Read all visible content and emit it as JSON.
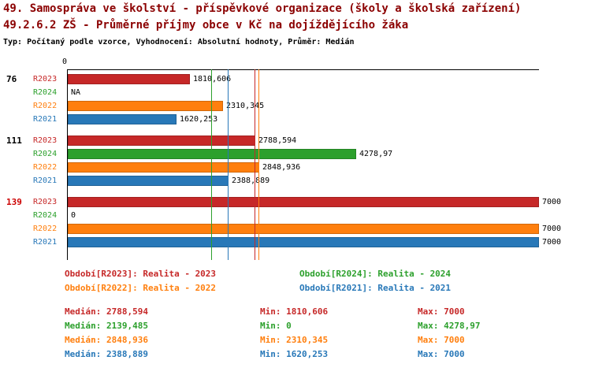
{
  "header": {
    "title": "49. Samospráva ve školství - příspěvkové organizace (školy a školská zařízení)",
    "subtitle": "49.2.6.2 ZŠ - Průměrné příjmy obce v Kč na dojíždějícího žáka",
    "meta": "Typ: Počítaný podle vzorce, Vyhodnocení: Absolutní hodnoty, Průměr: Medián"
  },
  "colors": {
    "series": {
      "R2023": "#c62828",
      "R2024": "#2ca02c",
      "R2022": "#ff7f0e",
      "R2021": "#2878b8"
    },
    "title": "#8b0000",
    "highlight": "#cc0000",
    "axis": "#000000"
  },
  "chart_data": {
    "type": "bar",
    "orientation": "horizontal",
    "axis": {
      "origin_label": "0",
      "xmin": 0,
      "xmax": 7000
    },
    "series_order": [
      "R2023",
      "R2024",
      "R2022",
      "R2021"
    ],
    "groups": [
      {
        "label": "76",
        "highlight": false,
        "bars": [
          {
            "series": "R2023",
            "value": 1810.606,
            "value_label": "1810,606"
          },
          {
            "series": "R2024",
            "value": null,
            "value_label": "NA"
          },
          {
            "series": "R2022",
            "value": 2310.345,
            "value_label": "2310,345"
          },
          {
            "series": "R2021",
            "value": 1620.253,
            "value_label": "1620,253"
          }
        ]
      },
      {
        "label": "111",
        "highlight": false,
        "bars": [
          {
            "series": "R2023",
            "value": 2788.594,
            "value_label": "2788,594"
          },
          {
            "series": "R2024",
            "value": 4278.97,
            "value_label": "4278,97"
          },
          {
            "series": "R2022",
            "value": 2848.936,
            "value_label": "2848,936"
          },
          {
            "series": "R2021",
            "value": 2388.889,
            "value_label": "2388,889"
          }
        ]
      },
      {
        "label": "139",
        "highlight": true,
        "bars": [
          {
            "series": "R2023",
            "value": 7000,
            "value_label": "7000"
          },
          {
            "series": "R2024",
            "value": 0,
            "value_label": "0"
          },
          {
            "series": "R2022",
            "value": 7000,
            "value_label": "7000"
          },
          {
            "series": "R2021",
            "value": 7000,
            "value_label": "7000"
          }
        ]
      }
    ],
    "median_lines": [
      {
        "series": "R2023",
        "value": 2788.594
      },
      {
        "series": "R2024",
        "value": 2139.485
      },
      {
        "series": "R2022",
        "value": 2848.936
      },
      {
        "series": "R2021",
        "value": 2388.889
      }
    ]
  },
  "legend": {
    "items": [
      {
        "series": "R2023",
        "label": "Období[R2023]: Realita - 2023"
      },
      {
        "series": "R2024",
        "label": "Období[R2024]: Realita - 2024"
      },
      {
        "series": "R2022",
        "label": "Období[R2022]: Realita - 2022"
      },
      {
        "series": "R2021",
        "label": "Období[R2021]: Realita - 2021"
      }
    ]
  },
  "stats": {
    "rows": [
      {
        "series": "R2023",
        "median": "Medián: 2788,594",
        "min": "Min: 1810,606",
        "max": "Max: 7000"
      },
      {
        "series": "R2024",
        "median": "Medián: 2139,485",
        "min": "Min: 0",
        "max": "Max: 4278,97"
      },
      {
        "series": "R2022",
        "median": "Medián: 2848,936",
        "min": "Min: 2310,345",
        "max": "Max: 7000"
      },
      {
        "series": "R2021",
        "median": "Medián: 2388,889",
        "min": "Min: 1620,253",
        "max": "Max: 7000"
      }
    ]
  }
}
